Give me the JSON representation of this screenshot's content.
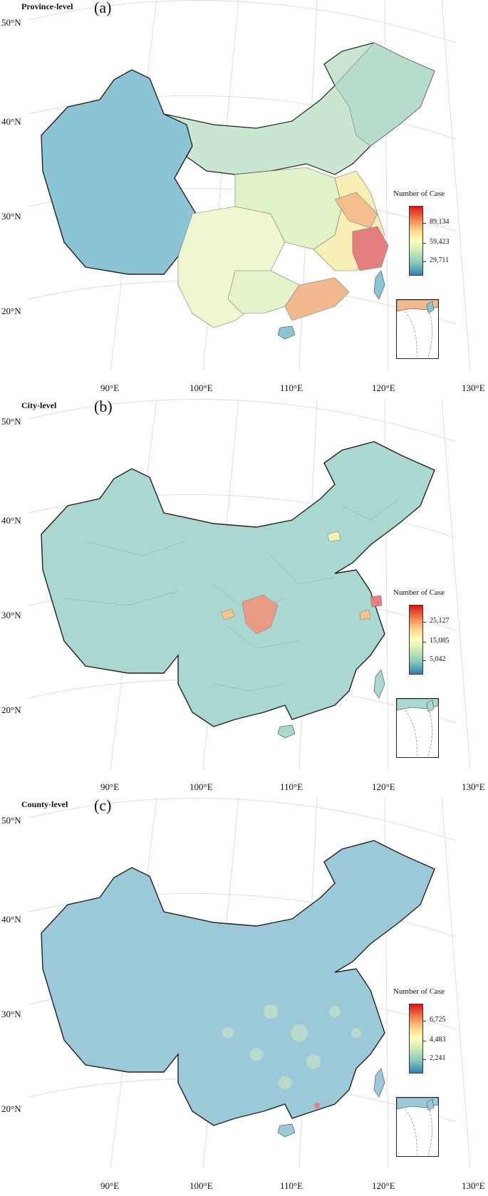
{
  "panels": [
    {
      "title": "Province-level",
      "letter": "(a)",
      "legend": {
        "title": "Number of Case",
        "ticks": [
          "89,134",
          "59,423",
          "29,711"
        ]
      }
    },
    {
      "title": "City-level",
      "letter": "(b)",
      "legend": {
        "title": "Number of Case",
        "ticks": [
          "25,127",
          "15,085",
          "5,042"
        ]
      }
    },
    {
      "title": "County-level",
      "letter": "(c)",
      "legend": {
        "title": "Number of Case",
        "ticks": [
          "6,725",
          "4,483",
          "2,241"
        ]
      }
    }
  ],
  "axes": {
    "latitudes": [
      "50°N",
      "40°N",
      "30°N",
      "20°N"
    ],
    "longitudes": [
      "90°E",
      "100°E",
      "110°E",
      "120°E",
      "130°E"
    ]
  },
  "colors": {
    "low": "#2b83ba",
    "mid": "#ffffbf",
    "high": "#d7191c",
    "graticule": "#d8d8d8"
  }
}
